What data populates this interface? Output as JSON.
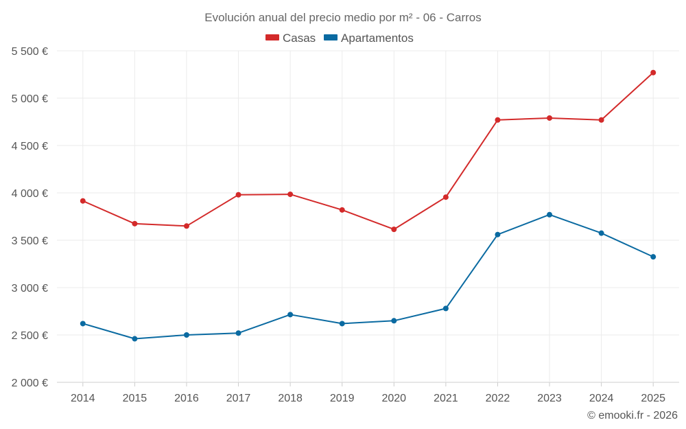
{
  "chart_data": {
    "type": "line",
    "title": "Evolución anual del precio medio por m² - 06 - Carros",
    "categories": [
      "2014",
      "2015",
      "2016",
      "2017",
      "2018",
      "2019",
      "2020",
      "2021",
      "2022",
      "2023",
      "2024",
      "2025"
    ],
    "series": [
      {
        "name": "Casas",
        "color": "#d32a2a",
        "values": [
          3915,
          3675,
          3650,
          3980,
          3985,
          3820,
          3615,
          3955,
          4770,
          4790,
          4770,
          5270
        ]
      },
      {
        "name": "Apartamentos",
        "color": "#0a6aa1",
        "values": [
          2620,
          2460,
          2500,
          2520,
          2715,
          2620,
          2650,
          2780,
          3560,
          3770,
          3575,
          3325
        ]
      }
    ],
    "y_ticks": [
      "2 000 €",
      "2 500 €",
      "3 000 €",
      "3 500 €",
      "4 000 €",
      "4 500 €",
      "5 000 €",
      "5 500 €"
    ],
    "y_tick_values": [
      2000,
      2500,
      3000,
      3500,
      4000,
      4500,
      5000,
      5500
    ],
    "ylim": [
      2000,
      5500
    ],
    "legend_position": "top-center",
    "grid": true
  },
  "credit": "© emooki.fr - 2026"
}
